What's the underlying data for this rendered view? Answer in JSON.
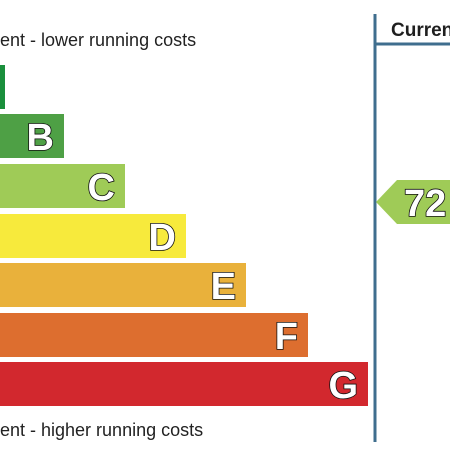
{
  "header": {
    "top_note": "ent - lower running costs",
    "column_title": "Curren"
  },
  "bands": [
    {
      "letter": null,
      "color": "#1a8f3c"
    },
    {
      "letter": "B",
      "color": "#4ea045"
    },
    {
      "letter": "C",
      "color": "#9fcb57"
    },
    {
      "letter": "D",
      "color": "#f7ea3c"
    },
    {
      "letter": "E",
      "color": "#e9b13b"
    },
    {
      "letter": "F",
      "color": "#dd6e2f"
    },
    {
      "letter": "G",
      "color": "#d2282e"
    }
  ],
  "footer": {
    "bottom_note": "ent - higher running costs"
  },
  "current": {
    "rating": "72",
    "color": "#9fcb57"
  }
}
